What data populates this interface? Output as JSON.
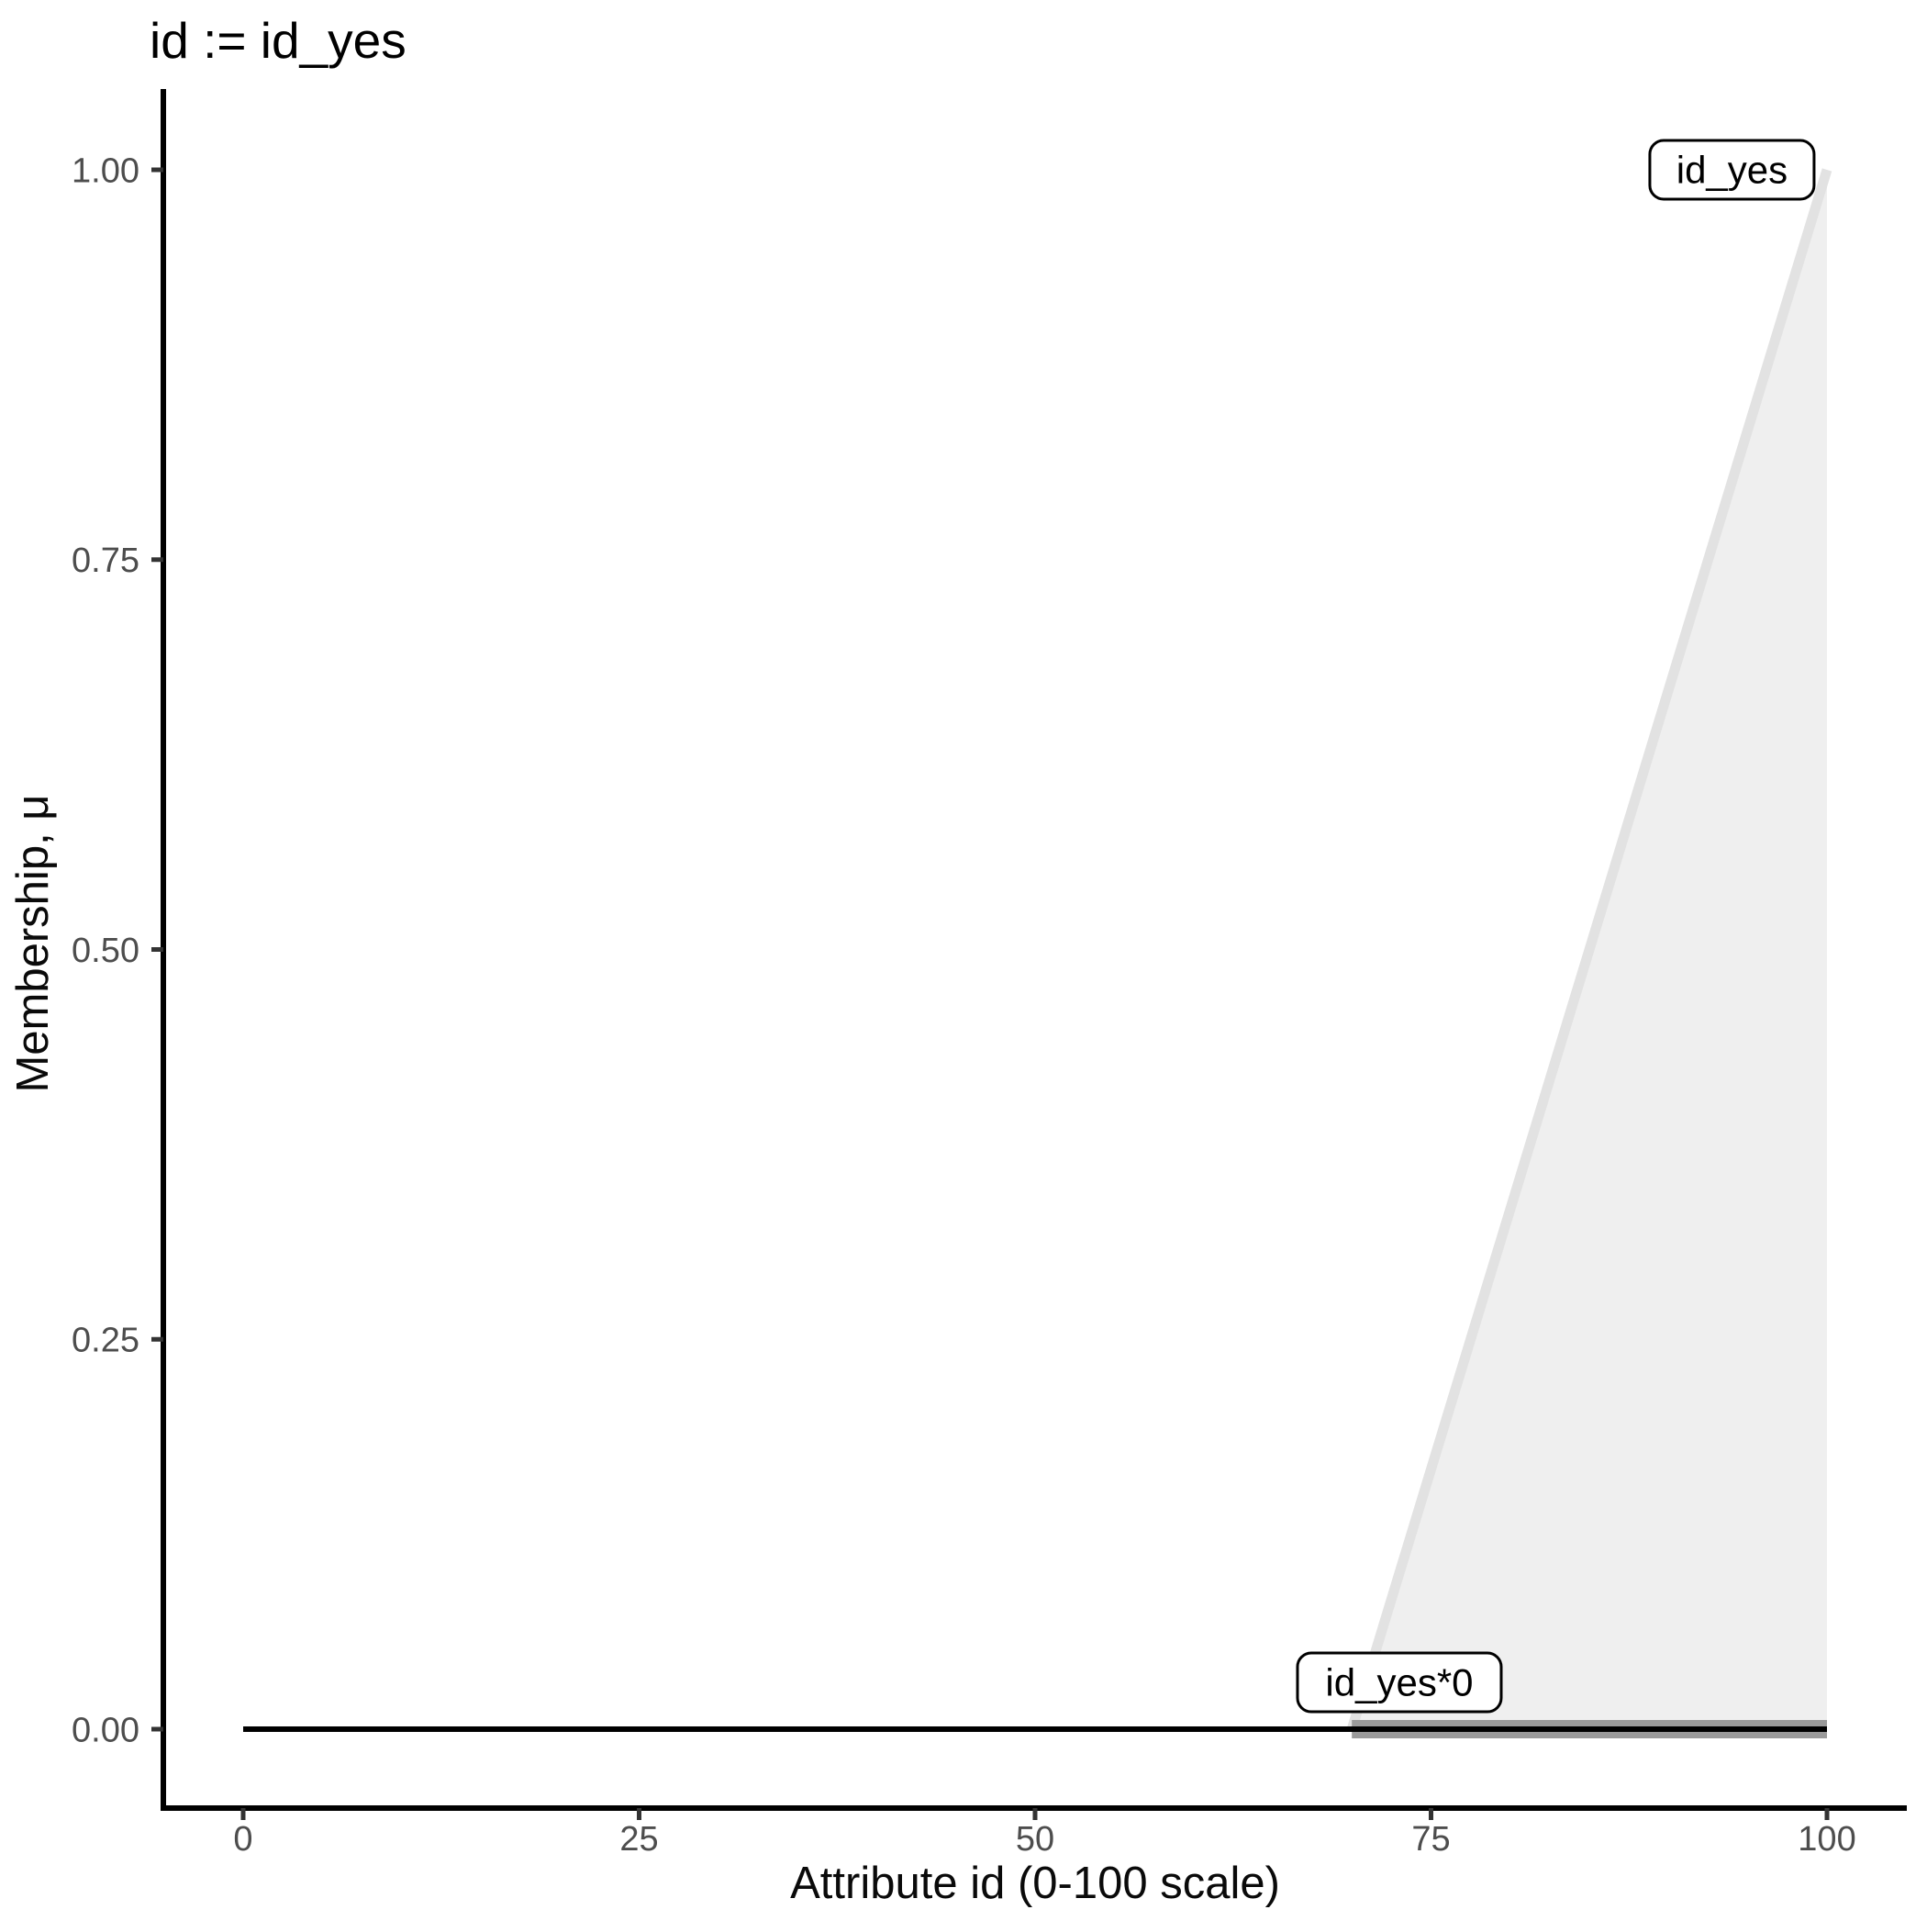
{
  "chart_data": {
    "type": "area",
    "title": "id := id_yes",
    "xlabel": "Attribute id (0-100 scale)",
    "ylabel": "Membership, μ",
    "xlim": [
      0,
      100
    ],
    "ylim": [
      0,
      1
    ],
    "grid": false,
    "legend_position": "none",
    "x_ticks": [
      0,
      25,
      50,
      75,
      100
    ],
    "x_tick_labels": [
      "0",
      "25",
      "50",
      "75",
      "100"
    ],
    "y_ticks": [
      0,
      0.25,
      0.5,
      0.75,
      1
    ],
    "y_tick_labels": [
      "0.00",
      "0.25",
      "0.50",
      "0.75",
      "1.00"
    ],
    "series": [
      {
        "name": "id_yes",
        "kind": "area",
        "description": "ramp membership function rising from 0 at x=70 to 1 at x=100",
        "line": [
          [
            70,
            0
          ],
          [
            100,
            1
          ]
        ],
        "fill_polygon": [
          [
            70,
            0
          ],
          [
            100,
            1
          ],
          [
            100,
            0
          ]
        ],
        "fill": "#efefef",
        "line_color": "#e2e2e2",
        "line_width": 11
      },
      {
        "name": "id_yes*0",
        "kind": "line",
        "description": "id_yes scaled by 0, thick gray band at membership 0 over support 70-100",
        "line": [
          [
            70,
            0
          ],
          [
            100,
            0
          ]
        ],
        "line_color": "#9a9a9a",
        "line_width": 20
      },
      {
        "name": "id_yes*0-zero-line",
        "kind": "line",
        "description": "zero membership line across full universe 0-100",
        "line": [
          [
            0,
            0
          ],
          [
            100,
            0
          ]
        ],
        "line_color": "#000000",
        "line_width": 6
      }
    ],
    "annotations": [
      {
        "label": "id_yes",
        "x": 94,
        "y": 1.0
      },
      {
        "label": "id_yes*0",
        "x": 73,
        "y": 0.03
      }
    ]
  },
  "colors": {
    "background": "#ffffff",
    "axis_line": "#000000",
    "tick_mark": "#333333",
    "tick_label": "#4d4d4d",
    "title_text": "#000000",
    "label_box_fill": "#ffffff",
    "label_box_border": "#000000"
  }
}
